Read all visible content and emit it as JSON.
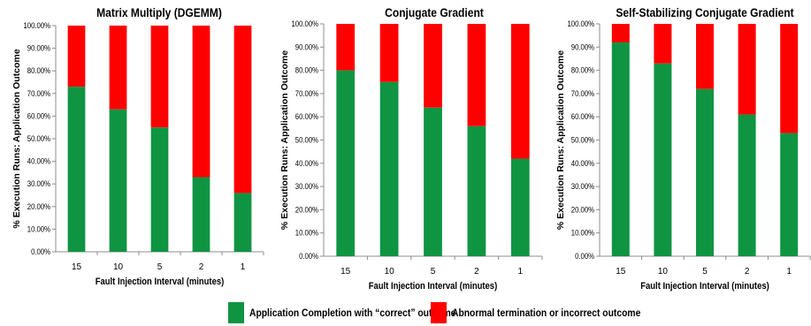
{
  "colors": {
    "series_correct": "#0f9442",
    "series_abnormal": "#ff0000",
    "axis": "#8c8c8c"
  },
  "legend": {
    "items": [
      {
        "label": "Application Completion with “correct” outcome",
        "color": "#0f9442"
      },
      {
        "label": "Abnormal termination or incorrect outcome",
        "color": "#ff0000"
      }
    ]
  },
  "chart_data": [
    {
      "type": "bar",
      "stacked": true,
      "title": "Matrix Multiply (DGEMM)",
      "xlabel": "Fault Injection Interval (minutes)",
      "ylabel": "% Execution Runs: Application Outcome",
      "categories": [
        "15",
        "10",
        "5",
        "2",
        "1"
      ],
      "ylim": [
        0,
        100
      ],
      "yticks": [
        "0.00%",
        "10.00%",
        "20.00%",
        "30.00%",
        "40.00%",
        "50.00%",
        "60.00%",
        "70.00%",
        "80.00%",
        "90.00%",
        "100.00%"
      ],
      "series": [
        {
          "name": "Application Completion with “correct” outcome",
          "values": [
            73,
            63,
            55,
            33,
            26
          ]
        },
        {
          "name": "Abnormal termination or incorrect outcome",
          "values": [
            27,
            37,
            45,
            67,
            74
          ]
        }
      ]
    },
    {
      "type": "bar",
      "stacked": true,
      "title": "Conjugate Gradient",
      "xlabel": "Fault Injection Interval (minutes)",
      "ylabel": "% Execution Runs: Application Outcome",
      "categories": [
        "15",
        "10",
        "5",
        "2",
        "1"
      ],
      "ylim": [
        0,
        100
      ],
      "yticks": [
        "0.00%",
        "10.00%",
        "20.00%",
        "30.00%",
        "40.00%",
        "50.00%",
        "60.00%",
        "70.00%",
        "80.00%",
        "90.00%",
        "100.00%"
      ],
      "series": [
        {
          "name": "Application Completion with “correct” outcome",
          "values": [
            80,
            75,
            64,
            56,
            42
          ]
        },
        {
          "name": "Abnormal termination or incorrect outcome",
          "values": [
            20,
            25,
            36,
            44,
            58
          ]
        }
      ]
    },
    {
      "type": "bar",
      "stacked": true,
      "title": "Self-Stabilizing Conjugate Gradient",
      "xlabel": "Fault Injection Interval (minutes)",
      "ylabel": "% Execution Runs: Application Outcome",
      "categories": [
        "15",
        "10",
        "5",
        "2",
        "1"
      ],
      "ylim": [
        0,
        100
      ],
      "yticks": [
        "0.00%",
        "10.00%",
        "20.00%",
        "30.00%",
        "40.00%",
        "50.00%",
        "60.00%",
        "70.00%",
        "80.00%",
        "90.00%",
        "100.00%"
      ],
      "series": [
        {
          "name": "Application Completion with “correct” outcome",
          "values": [
            92,
            83,
            72,
            61,
            53
          ]
        },
        {
          "name": "Abnormal termination or incorrect outcome",
          "values": [
            8,
            17,
            28,
            39,
            47
          ]
        }
      ]
    }
  ]
}
